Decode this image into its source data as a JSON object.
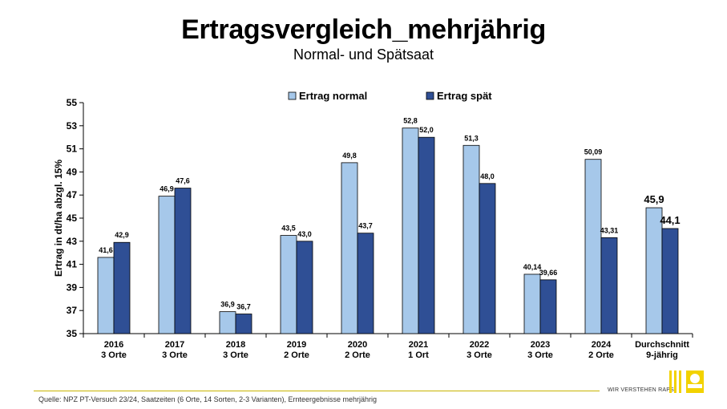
{
  "header": {
    "title": "Ertragsvergleich_mehrjährig",
    "subtitle": "Normal- und Spätsaat"
  },
  "footer": {
    "source": "Quelle: NPZ PT-Versuch 23/24, Saatzeiten (6 Orte, 14 Sorten, 2-3 Varianten), Ernteergebnisse mehrjährig",
    "tagline": "WIR VERSTEHEN RAPS",
    "logo_text": "rapool"
  },
  "colors": {
    "normal": "#a6c8ea",
    "spaet": "#2f4f95",
    "footer_line": "#c8b400",
    "logo_yellow": "#f2d200"
  },
  "chart_data": {
    "type": "bar",
    "title": "Ertragsvergleich_mehrjährig",
    "subtitle": "Normal- und Spätsaat",
    "ylabel": "Ertrag in dt/ha abzgl. 15%",
    "xlabel": "",
    "ylim": [
      35,
      55
    ],
    "yticks": [
      35,
      37,
      39,
      41,
      43,
      45,
      47,
      49,
      51,
      53,
      55
    ],
    "legend_position": "top-center",
    "grid": false,
    "categories": [
      [
        "2016",
        "3 Orte"
      ],
      [
        "2017",
        "3 Orte"
      ],
      [
        "2018",
        "3 Orte"
      ],
      [
        "2019",
        "2 Orte"
      ],
      [
        "2020",
        "2 Orte"
      ],
      [
        "2021",
        "1 Ort"
      ],
      [
        "2022",
        "3 Orte"
      ],
      [
        "2023",
        "3 Orte"
      ],
      [
        "2024",
        "2 Orte"
      ],
      [
        "Durchschnitt",
        "9-jährig"
      ]
    ],
    "series": [
      {
        "name": "Ertrag normal",
        "values": [
          41.6,
          46.9,
          36.9,
          43.5,
          49.8,
          52.8,
          51.3,
          40.14,
          50.09,
          45.9
        ],
        "labels": [
          "41,6",
          "46,9",
          "36,9",
          "43,5",
          "49,8",
          "52,8",
          "51,3",
          "40,14",
          "50,09",
          "45,9"
        ]
      },
      {
        "name": "Ertrag spät",
        "values": [
          42.9,
          47.6,
          36.7,
          43.0,
          43.7,
          52.0,
          48.0,
          39.66,
          43.31,
          44.1
        ],
        "labels": [
          "42,9",
          "47,6",
          "36,7",
          "43,0",
          "43,7",
          "52,0",
          "48,0",
          "39,66",
          "43,31",
          "44,1"
        ]
      }
    ]
  }
}
